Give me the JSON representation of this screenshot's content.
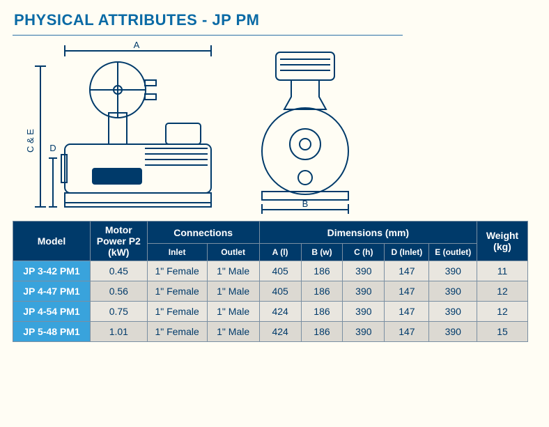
{
  "title": "PHYSICAL ATTRIBUTES - JP PM",
  "colors": {
    "brand_blue": "#003a6a",
    "header_bg": "#003a6a",
    "model_bg": "#39a3dc",
    "title_blue": "#0a6aa5",
    "row_bg": "#e9e6df",
    "row_alt_bg": "#dcd9d2",
    "border": "#7a8fa2",
    "page_bg": "#fffdf4",
    "diagram_stroke": "#003a6a"
  },
  "diagram": {
    "type": "engineering-dimension",
    "dim_labels": {
      "A": "A",
      "B": "B",
      "CE": "C & E",
      "D": "D"
    }
  },
  "table": {
    "headers": {
      "model": "Model",
      "motor": "Motor Power P2 (kW)",
      "connections": "Connections",
      "inlet": "Inlet",
      "outlet": "Outlet",
      "dimensions": "Dimensions (mm)",
      "A": "A (l)",
      "B": "B (w)",
      "C": "C (h)",
      "D": "D (Inlet)",
      "E": "E (outlet)",
      "weight": "Weight (kg)"
    },
    "rows": [
      {
        "model": "JP 3-42 PM1",
        "power": "0.45",
        "inlet": "1\" Female",
        "outlet": "1\" Male",
        "A": "405",
        "B": "186",
        "C": "390",
        "D": "147",
        "E": "390",
        "wt": "11"
      },
      {
        "model": "JP 4-47 PM1",
        "power": "0.56",
        "inlet": "1\" Female",
        "outlet": "1\" Male",
        "A": "405",
        "B": "186",
        "C": "390",
        "D": "147",
        "E": "390",
        "wt": "12"
      },
      {
        "model": "JP 4-54 PM1",
        "power": "0.75",
        "inlet": "1\" Female",
        "outlet": "1\" Male",
        "A": "424",
        "B": "186",
        "C": "390",
        "D": "147",
        "E": "390",
        "wt": "12"
      },
      {
        "model": "JP 5-48 PM1",
        "power": "1.01",
        "inlet": "1\" Female",
        "outlet": "1\" Male",
        "A": "424",
        "B": "186",
        "C": "390",
        "D": "147",
        "E": "390",
        "wt": "15"
      }
    ]
  }
}
